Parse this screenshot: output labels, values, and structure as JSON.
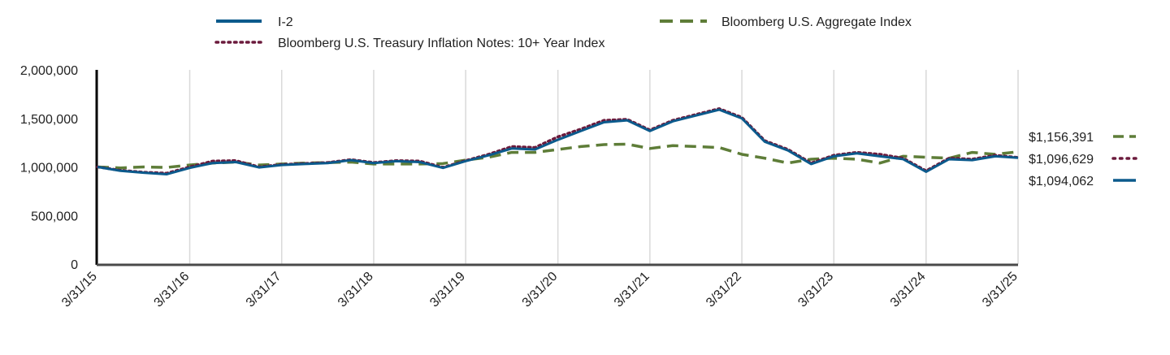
{
  "chart_data": {
    "type": "line",
    "x_categories": [
      "3/31/15",
      "3/31/16",
      "3/31/17",
      "3/31/18",
      "3/31/19",
      "3/31/20",
      "3/31/21",
      "3/31/22",
      "3/31/23",
      "3/31/24",
      "3/31/25"
    ],
    "xlim": [
      "3/31/15",
      "3/31/25"
    ],
    "ylim": [
      0,
      2000000
    ],
    "y_ticks": [
      0,
      500000,
      1000000,
      1500000,
      2000000
    ],
    "y_tick_labels": [
      "0",
      "500,000",
      "1,000,000",
      "1,500,000",
      "2,000,000"
    ],
    "grid": "vertical",
    "legend_position": "top",
    "series": [
      {
        "name": "I-2",
        "color": "#0b5a8c",
        "style": "solid",
        "end_label": "$1,094,062",
        "x": [
          "3/31/15",
          "6/30/15",
          "9/30/15",
          "12/31/15",
          "3/31/16",
          "6/30/16",
          "9/30/16",
          "12/31/16",
          "3/31/17",
          "6/30/17",
          "9/30/17",
          "12/31/17",
          "3/31/18",
          "6/30/18",
          "9/30/18",
          "12/31/18",
          "3/31/19",
          "6/30/19",
          "9/30/19",
          "12/31/19",
          "3/31/20",
          "6/30/20",
          "9/30/20",
          "12/31/20",
          "3/31/21",
          "6/30/21",
          "9/30/21",
          "12/31/21",
          "3/31/22",
          "6/30/22",
          "9/30/22",
          "12/31/22",
          "3/31/23",
          "6/30/23",
          "9/30/23",
          "12/31/23",
          "3/31/24",
          "6/30/24",
          "9/30/24",
          "12/31/24",
          "3/31/25"
        ],
        "y": [
          1000000,
          960000,
          940000,
          925000,
          990000,
          1040000,
          1050000,
          995000,
          1020000,
          1030000,
          1040000,
          1070000,
          1040000,
          1060000,
          1050000,
          990000,
          1060000,
          1120000,
          1190000,
          1180000,
          1280000,
          1370000,
          1460000,
          1480000,
          1370000,
          1470000,
          1530000,
          1590000,
          1500000,
          1260000,
          1170000,
          1030000,
          1110000,
          1140000,
          1110000,
          1080000,
          950000,
          1080000,
          1070000,
          1110000,
          1094062
        ]
      },
      {
        "name": "Bloomberg U.S. Treasury Inflation Notes: 10+ Year Index",
        "color": "#6b1a3c",
        "style": "dotted",
        "end_label": "$1,096,629",
        "x": [
          "3/31/15",
          "6/30/15",
          "9/30/15",
          "12/31/15",
          "3/31/16",
          "6/30/16",
          "9/30/16",
          "12/31/16",
          "3/31/17",
          "6/30/17",
          "9/30/17",
          "12/31/17",
          "3/31/18",
          "6/30/18",
          "9/30/18",
          "12/31/18",
          "3/31/19",
          "6/30/19",
          "9/30/19",
          "12/31/19",
          "3/31/20",
          "6/30/20",
          "9/30/20",
          "12/31/20",
          "3/31/21",
          "6/30/21",
          "9/30/21",
          "12/31/21",
          "3/31/22",
          "6/30/22",
          "9/30/22",
          "12/31/22",
          "3/31/23",
          "6/30/23",
          "9/30/23",
          "12/31/23",
          "3/31/24",
          "6/30/24",
          "9/30/24",
          "12/31/24",
          "3/31/25"
        ],
        "y": [
          1000000,
          965000,
          945000,
          935000,
          1000000,
          1060000,
          1065000,
          1000000,
          1025000,
          1035000,
          1045000,
          1075000,
          1045000,
          1065000,
          1060000,
          995000,
          1065000,
          1130000,
          1210000,
          1200000,
          1310000,
          1390000,
          1480000,
          1490000,
          1380000,
          1480000,
          1540000,
          1600000,
          1510000,
          1270000,
          1180000,
          1040000,
          1120000,
          1150000,
          1130000,
          1090000,
          960000,
          1090000,
          1080000,
          1120000,
          1096629
        ]
      },
      {
        "name": "Bloomberg U.S. Aggregate Index",
        "color": "#5e7d38",
        "style": "dashed",
        "end_label": "$1,156,391",
        "x": [
          "3/31/15",
          "6/30/15",
          "9/30/15",
          "12/31/15",
          "3/31/16",
          "6/30/16",
          "9/30/16",
          "12/31/16",
          "3/31/17",
          "6/30/17",
          "9/30/17",
          "12/31/17",
          "3/31/18",
          "6/30/18",
          "9/30/18",
          "12/31/18",
          "3/31/19",
          "6/30/19",
          "9/30/19",
          "12/31/19",
          "3/31/20",
          "6/30/20",
          "9/30/20",
          "12/31/20",
          "3/31/21",
          "6/30/21",
          "9/30/21",
          "12/31/21",
          "3/31/22",
          "6/30/22",
          "9/30/22",
          "12/31/22",
          "3/31/23",
          "6/30/23",
          "9/30/23",
          "12/31/23",
          "3/31/24",
          "6/30/24",
          "9/30/24",
          "12/31/24",
          "3/31/25"
        ],
        "y": [
          1000000,
          990000,
          1000000,
          995000,
          1020000,
          1040000,
          1050000,
          1020000,
          1030000,
          1040000,
          1045000,
          1050000,
          1030000,
          1030000,
          1030000,
          1035000,
          1070000,
          1100000,
          1150000,
          1150000,
          1180000,
          1210000,
          1230000,
          1235000,
          1190000,
          1220000,
          1210000,
          1200000,
          1130000,
          1090000,
          1040000,
          1080000,
          1090000,
          1080000,
          1040000,
          1110000,
          1100000,
          1090000,
          1150000,
          1130000,
          1156391
        ]
      }
    ]
  }
}
